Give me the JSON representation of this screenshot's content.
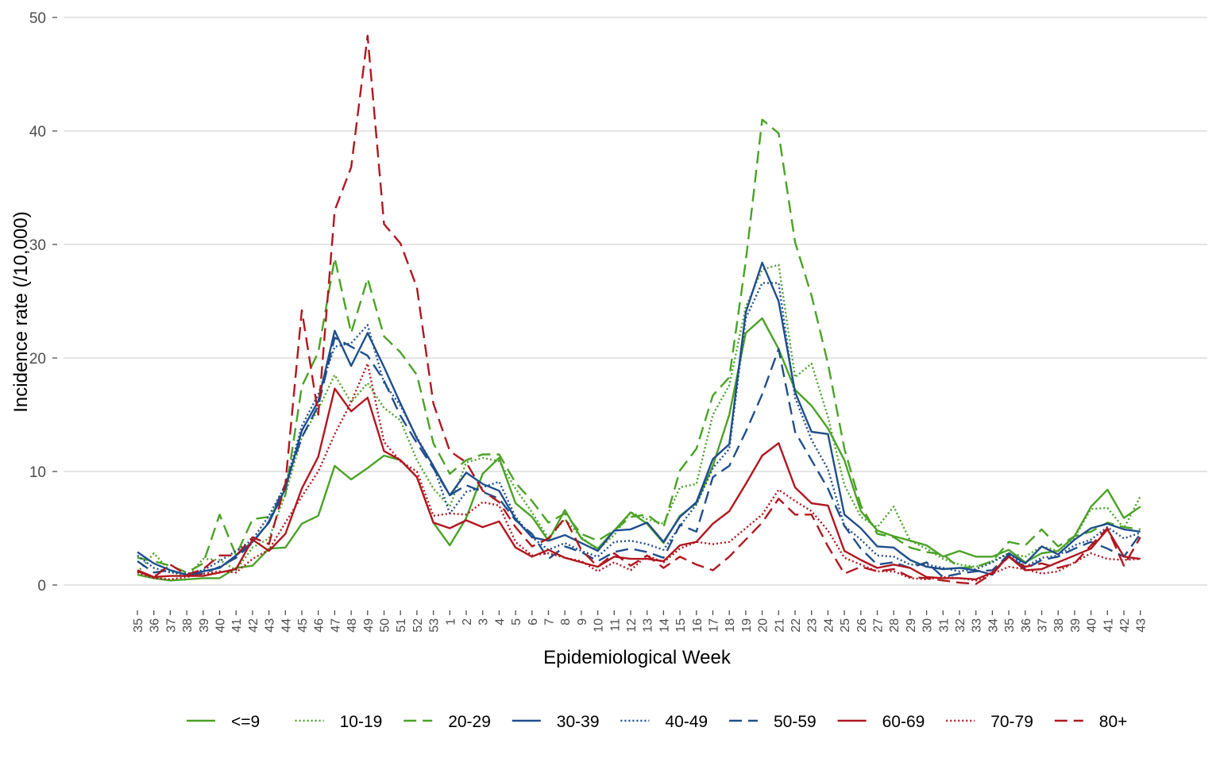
{
  "chart_data": {
    "type": "line",
    "xlabel": "Epidemiological Week",
    "ylabel": "Incidence rate (/10,000)",
    "ylim": [
      0,
      50
    ],
    "yticks": [
      0,
      10,
      20,
      30,
      40,
      50
    ],
    "grid": "horizontal",
    "legend_position": "bottom",
    "categories": [
      "35",
      "36",
      "37",
      "38",
      "39",
      "40",
      "41",
      "42",
      "43",
      "44",
      "45",
      "46",
      "47",
      "48",
      "49",
      "50",
      "51",
      "52",
      "53",
      "1",
      "2",
      "3",
      "4",
      "5",
      "6",
      "7",
      "8",
      "9",
      "10",
      "11",
      "12",
      "13",
      "14",
      "15",
      "16",
      "17",
      "18",
      "19",
      "20",
      "21",
      "22",
      "23",
      "24",
      "25",
      "26",
      "27",
      "28",
      "29",
      "30",
      "31",
      "32",
      "33",
      "34",
      "35",
      "36",
      "37",
      "38",
      "39",
      "40",
      "41",
      "42",
      "43"
    ],
    "series": [
      {
        "name": "<=9",
        "color": "#4aa226",
        "dash": "solid",
        "values": [
          0.9,
          0.6,
          0.4,
          0.5,
          0.6,
          0.6,
          1.5,
          1.7,
          3.2,
          3.3,
          5.4,
          6.1,
          10.5,
          9.3,
          10.3,
          11.4,
          11.0,
          9.5,
          5.5,
          3.5,
          5.9,
          9.8,
          11.2,
          7.2,
          6.0,
          3.9,
          6.6,
          4.1,
          3.2,
          4.8,
          6.4,
          5.4,
          3.7,
          6.1,
          7.2,
          10.5,
          15.0,
          22.2,
          23.5,
          20.8,
          17.2,
          15.8,
          13.8,
          11.0,
          6.5,
          4.8,
          4.3,
          3.9,
          3.5,
          2.5,
          3.0,
          2.5,
          2.5,
          3.1,
          2.0,
          2.8,
          3.0,
          4.3,
          6.9,
          8.4,
          5.9,
          6.9
        ]
      },
      {
        "name": "10-19",
        "color": "#4aa226",
        "dash": "2,3",
        "values": [
          1.1,
          2.8,
          1.2,
          0.7,
          2.3,
          2.2,
          1.3,
          3.3,
          4.1,
          8.0,
          13.0,
          15.5,
          18.5,
          16.1,
          17.8,
          15.6,
          14.5,
          11.0,
          8.5,
          6.9,
          10.8,
          11.2,
          10.9,
          8.5,
          6.4,
          4.1,
          5.8,
          4.2,
          3.1,
          4.4,
          6.4,
          5.8,
          5.4,
          8.6,
          8.9,
          15.0,
          17.6,
          24.5,
          27.8,
          28.2,
          18.3,
          19.5,
          14.8,
          8.8,
          6.0,
          5.1,
          6.9,
          3.9,
          3.2,
          2.3,
          1.8,
          1.6,
          2.1,
          2.8,
          2.5,
          3.4,
          3.0,
          4.2,
          6.7,
          6.8,
          5.0,
          7.8
        ]
      },
      {
        "name": "20-29",
        "color": "#4aa226",
        "dash": "16,8",
        "values": [
          2.4,
          2.1,
          1.7,
          1.1,
          1.9,
          6.2,
          2.6,
          5.8,
          6.0,
          7.9,
          17.5,
          20.5,
          28.8,
          22.2,
          27.0,
          21.9,
          20.5,
          18.5,
          12.5,
          9.8,
          11.0,
          11.5,
          11.5,
          9.0,
          7.4,
          5.5,
          6.3,
          4.5,
          3.9,
          4.8,
          6.0,
          6.2,
          5.1,
          10.1,
          12.0,
          16.7,
          18.3,
          28.5,
          41.0,
          39.8,
          30.2,
          25.5,
          19.5,
          12.0,
          7.0,
          4.5,
          4.2,
          3.3,
          2.9,
          2.7,
          1.5,
          1.6,
          2.1,
          3.8,
          3.5,
          4.9,
          3.4,
          4.3,
          4.7,
          5.5,
          5.1,
          4.9
        ]
      },
      {
        "name": "30-39",
        "color": "#1f4e8c",
        "dash": "solid",
        "values": [
          2.9,
          1.9,
          1.3,
          0.9,
          1.2,
          1.5,
          2.6,
          3.8,
          5.5,
          8.5,
          13.6,
          16.2,
          22.4,
          19.3,
          22.2,
          19.2,
          16.0,
          12.9,
          10.5,
          7.9,
          9.9,
          8.9,
          8.3,
          5.8,
          4.2,
          3.9,
          4.4,
          3.7,
          3.0,
          4.8,
          4.9,
          5.5,
          3.8,
          6.0,
          7.3,
          11.1,
          12.4,
          24.0,
          28.4,
          25.0,
          17.0,
          13.5,
          13.3,
          6.2,
          5.0,
          3.4,
          3.3,
          2.2,
          1.6,
          1.4,
          1.5,
          1.3,
          0.9,
          2.8,
          1.9,
          3.4,
          2.7,
          4.0,
          5.0,
          5.4,
          4.9,
          4.7
        ]
      },
      {
        "name": "40-49",
        "color": "#1f4e8c",
        "dash": "2,3",
        "values": [
          2.6,
          1.5,
          1.1,
          1.0,
          1.3,
          2.1,
          3.0,
          4.0,
          6.1,
          8.8,
          14.0,
          16.8,
          21.0,
          21.3,
          22.9,
          17.8,
          15.8,
          13.0,
          10.5,
          6.3,
          8.2,
          8.6,
          9.1,
          6.0,
          4.2,
          3.1,
          3.7,
          3.0,
          2.5,
          3.8,
          3.9,
          3.6,
          3.1,
          5.2,
          7.1,
          10.3,
          12.0,
          23.5,
          26.6,
          26.6,
          16.5,
          12.8,
          10.2,
          5.2,
          4.0,
          2.6,
          2.5,
          1.8,
          1.8,
          1.5,
          1.2,
          1.4,
          2.0,
          2.8,
          1.6,
          2.4,
          2.6,
          3.5,
          4.0,
          5.1,
          4.1,
          4.6
        ]
      },
      {
        "name": "50-59",
        "color": "#1f4e8c",
        "dash": "16,8",
        "values": [
          2.1,
          1.1,
          1.3,
          0.9,
          1.0,
          1.6,
          2.4,
          3.7,
          5.6,
          8.9,
          13.0,
          15.8,
          21.8,
          21.0,
          20.2,
          18.0,
          14.9,
          12.5,
          10.3,
          7.9,
          8.8,
          8.2,
          7.6,
          5.7,
          4.5,
          2.3,
          3.4,
          2.9,
          2.1,
          2.9,
          3.2,
          2.9,
          2.4,
          5.3,
          4.7,
          9.5,
          10.5,
          13.5,
          16.8,
          20.8,
          13.5,
          11.0,
          8.5,
          5.2,
          3.2,
          1.8,
          2.0,
          1.5,
          2.0,
          0.7,
          1.0,
          1.2,
          1.3,
          2.7,
          1.4,
          2.2,
          2.5,
          3.2,
          3.8,
          3.2,
          2.5,
          4.5
        ]
      },
      {
        "name": "60-69",
        "color": "#b0171f",
        "dash": "solid",
        "values": [
          1.3,
          0.7,
          0.8,
          0.8,
          0.8,
          1.1,
          1.4,
          4.0,
          3.0,
          4.5,
          8.5,
          11.3,
          17.3,
          15.3,
          16.5,
          11.8,
          11.0,
          9.5,
          5.5,
          5.0,
          5.7,
          5.1,
          5.6,
          3.3,
          2.5,
          3.1,
          2.4,
          2.0,
          1.6,
          2.5,
          2.3,
          2.3,
          2.1,
          3.5,
          3.8,
          5.4,
          6.5,
          8.9,
          11.4,
          12.5,
          8.6,
          7.2,
          7.0,
          3.0,
          2.2,
          1.5,
          1.8,
          1.5,
          0.7,
          0.6,
          0.6,
          0.5,
          1.1,
          2.5,
          1.3,
          1.4,
          2.0,
          2.6,
          3.2,
          4.9,
          2.5,
          2.3
        ]
      },
      {
        "name": "70-79",
        "color": "#b0171f",
        "dash": "2,3",
        "values": [
          1.1,
          0.6,
          0.5,
          0.7,
          1.0,
          1.2,
          1.1,
          2.3,
          3.1,
          5.5,
          7.8,
          10.0,
          13.3,
          16.1,
          19.5,
          12.6,
          10.9,
          10.0,
          6.1,
          6.3,
          6.2,
          7.3,
          7.0,
          3.8,
          2.6,
          2.8,
          2.4,
          2.1,
          1.2,
          2.0,
          1.3,
          2.6,
          2.0,
          3.2,
          3.8,
          3.6,
          3.8,
          5.0,
          6.2,
          8.4,
          7.4,
          6.5,
          4.8,
          2.4,
          1.8,
          1.2,
          1.2,
          0.6,
          0.5,
          0.7,
          0.6,
          0.4,
          1.0,
          1.6,
          1.4,
          1.0,
          1.2,
          2.0,
          2.8,
          2.3,
          2.2,
          2.3
        ]
      },
      {
        "name": "80+",
        "color": "#b0171f",
        "dash": "16,8",
        "values": [
          1.2,
          0.7,
          1.8,
          0.9,
          1.4,
          2.6,
          2.6,
          4.2,
          3.6,
          8.9,
          24.2,
          15.0,
          33.0,
          36.8,
          48.4,
          31.8,
          30.1,
          26.2,
          16.0,
          11.8,
          10.8,
          8.3,
          7.3,
          5.1,
          3.4,
          4.1,
          5.9,
          3.1,
          1.6,
          2.8,
          1.7,
          2.6,
          1.5,
          2.5,
          1.8,
          1.3,
          2.5,
          4.0,
          5.5,
          7.6,
          6.2,
          6.2,
          3.4,
          1.0,
          1.6,
          1.2,
          1.4,
          0.7,
          0.6,
          0.4,
          0.2,
          0.1,
          1.0,
          2.5,
          1.6,
          1.9,
          1.5,
          1.9,
          3.5,
          5.0,
          1.7,
          4.2
        ]
      }
    ]
  }
}
